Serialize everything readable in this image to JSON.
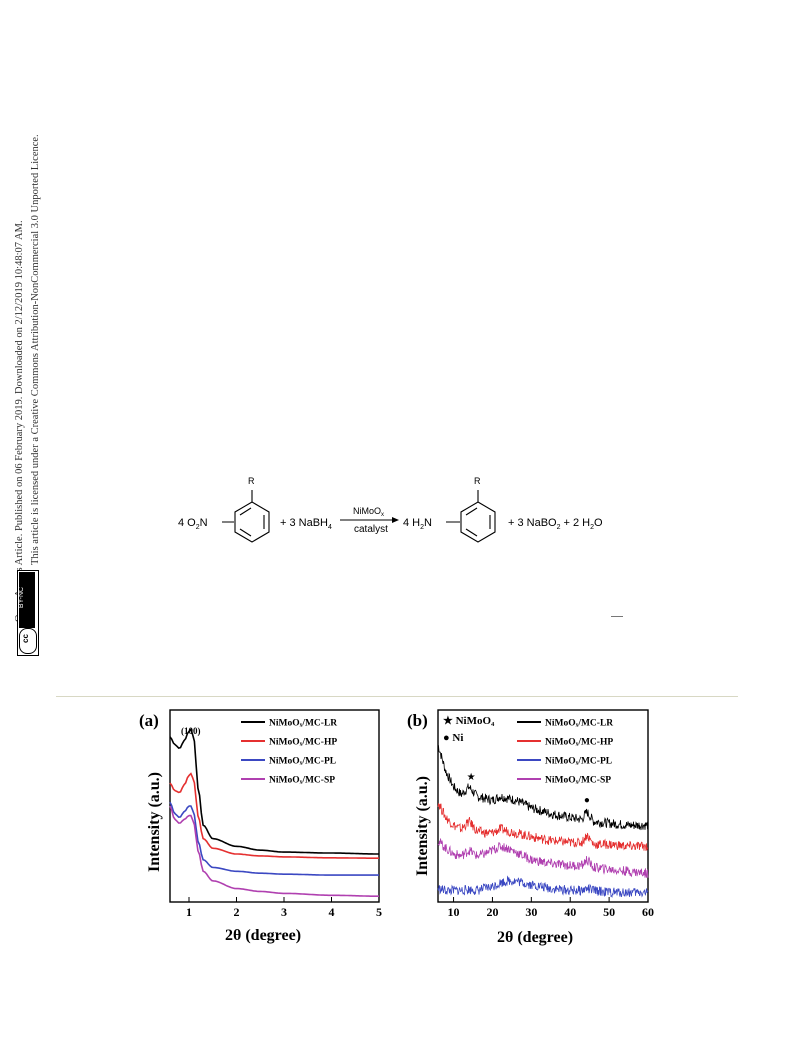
{
  "sidebar": {
    "line1": "Open Access Article. Published on 06 February 2019. Downloaded on 2/12/2019 10:48:07 AM.",
    "line2": "This article is licensed under a Creative Commons Attribution-NonCommercial 3.0 Unported Licence.",
    "badge_cc": "cc",
    "badge_text": "BY-NC"
  },
  "scheme": {
    "reactant_coef": "4 O",
    "reactant_sub": "2",
    "reactant_n": "N",
    "substituent": "R",
    "plus1": "+ 3 NaBH",
    "plus1_sub": "4",
    "arrow_top_main": "NiMoO",
    "arrow_top_sub": "x",
    "arrow_bottom": "catalyst",
    "product_coef": "4 H",
    "product_sub": "2",
    "product_n": "N",
    "plus2_a": "+ 3 NaBO",
    "plus2_sub": "2",
    "plus2_b": "+ 2 H",
    "plus2_sub2": "2",
    "plus2_c": "O"
  },
  "chart_data": [
    {
      "type": "line",
      "panel_label": "(a)",
      "xlabel": "2θ (degree)",
      "ylabel": "Intensity (a.u.)",
      "xlim": [
        0.6,
        5
      ],
      "xticks": [
        "1",
        "2",
        "3",
        "4",
        "5"
      ],
      "annotation": "(100)",
      "legend_position": "top-right",
      "series": [
        {
          "name": "NiMoOₓ/MC-LR",
          "color": "#000000",
          "x": [
            0.6,
            0.7,
            0.8,
            0.9,
            1.0,
            1.05,
            1.1,
            1.2,
            1.3,
            1.5,
            2,
            2.5,
            3,
            4,
            5
          ],
          "y": [
            0.86,
            0.82,
            0.8,
            0.84,
            0.89,
            0.9,
            0.85,
            0.58,
            0.4,
            0.33,
            0.29,
            0.27,
            0.26,
            0.255,
            0.25
          ]
        },
        {
          "name": "NiMoOₓ/MC-HP",
          "color": "#e53030",
          "x": [
            0.6,
            0.7,
            0.8,
            0.9,
            1.0,
            1.05,
            1.1,
            1.2,
            1.3,
            1.5,
            2,
            2.5,
            3,
            4,
            5
          ],
          "y": [
            0.62,
            0.58,
            0.57,
            0.61,
            0.66,
            0.67,
            0.63,
            0.44,
            0.33,
            0.28,
            0.25,
            0.24,
            0.235,
            0.23,
            0.228
          ]
        },
        {
          "name": "NiMoOₓ/MC-PL",
          "color": "#3b48c2",
          "x": [
            0.6,
            0.7,
            0.8,
            0.9,
            1.0,
            1.05,
            1.1,
            1.2,
            1.3,
            1.5,
            2,
            2.5,
            3,
            4,
            5
          ],
          "y": [
            0.52,
            0.46,
            0.44,
            0.47,
            0.5,
            0.5,
            0.46,
            0.31,
            0.22,
            0.18,
            0.16,
            0.15,
            0.145,
            0.14,
            0.14
          ]
        },
        {
          "name": "NiMoOₓ/MC-SP",
          "color": "#b040b0",
          "x": [
            0.6,
            0.7,
            0.8,
            0.9,
            1.0,
            1.05,
            1.1,
            1.2,
            1.3,
            1.5,
            2,
            2.5,
            3,
            4,
            5
          ],
          "y": [
            0.5,
            0.43,
            0.41,
            0.43,
            0.45,
            0.45,
            0.41,
            0.26,
            0.16,
            0.11,
            0.07,
            0.055,
            0.045,
            0.035,
            0.03
          ]
        }
      ]
    },
    {
      "type": "line",
      "panel_label": "(b)",
      "xlabel": "2θ (degree)",
      "ylabel": "Intensity (a.u.)",
      "xlim": [
        6,
        60
      ],
      "xticks": [
        "10",
        "20",
        "30",
        "40",
        "50",
        "60"
      ],
      "markers": [
        {
          "symbol": "★",
          "label": "NiMoO₄",
          "x": 14.5
        },
        {
          "symbol": "●",
          "label": "Ni",
          "x": 44.3
        }
      ],
      "legend_position": "top-right",
      "series": [
        {
          "name": "NiMoOₓ/MC-LR",
          "color": "#000000",
          "x": [
            6,
            8,
            10,
            12,
            14,
            16,
            18,
            20,
            22,
            24,
            26,
            28,
            30,
            35,
            40,
            43,
            44.3,
            46,
            50,
            55,
            60
          ],
          "y": [
            0.82,
            0.68,
            0.6,
            0.56,
            0.6,
            0.55,
            0.54,
            0.53,
            0.55,
            0.54,
            0.53,
            0.51,
            0.49,
            0.46,
            0.44,
            0.43,
            0.47,
            0.42,
            0.41,
            0.4,
            0.4
          ]
        },
        {
          "name": "NiMoOₓ/MC-HP",
          "color": "#e53030",
          "x": [
            6,
            8,
            10,
            12,
            14,
            16,
            18,
            20,
            22,
            24,
            26,
            28,
            30,
            35,
            40,
            43,
            44.3,
            46,
            50,
            55,
            60
          ],
          "y": [
            0.52,
            0.44,
            0.4,
            0.38,
            0.42,
            0.37,
            0.36,
            0.36,
            0.38,
            0.37,
            0.36,
            0.35,
            0.34,
            0.32,
            0.31,
            0.31,
            0.35,
            0.3,
            0.3,
            0.29,
            0.29
          ]
        },
        {
          "name": "NiMoOₓ/MC-PL",
          "color": "#3b48c2",
          "x": [
            6,
            8,
            10,
            12,
            14,
            16,
            18,
            20,
            22,
            24,
            26,
            28,
            30,
            35,
            40,
            43,
            44.3,
            46,
            50,
            55,
            60
          ],
          "y": [
            0.07,
            0.06,
            0.06,
            0.06,
            0.065,
            0.06,
            0.07,
            0.08,
            0.1,
            0.11,
            0.11,
            0.1,
            0.09,
            0.07,
            0.06,
            0.06,
            0.07,
            0.06,
            0.05,
            0.05,
            0.05
          ]
        },
        {
          "name": "NiMoOₓ/MC-SP",
          "color": "#b040b0",
          "x": [
            6,
            8,
            10,
            12,
            14,
            16,
            18,
            20,
            22,
            24,
            26,
            28,
            30,
            35,
            40,
            43,
            44.3,
            46,
            50,
            55,
            60
          ],
          "y": [
            0.32,
            0.28,
            0.25,
            0.24,
            0.27,
            0.24,
            0.25,
            0.27,
            0.29,
            0.28,
            0.26,
            0.24,
            0.22,
            0.2,
            0.19,
            0.19,
            0.22,
            0.18,
            0.17,
            0.16,
            0.15
          ]
        }
      ]
    }
  ]
}
